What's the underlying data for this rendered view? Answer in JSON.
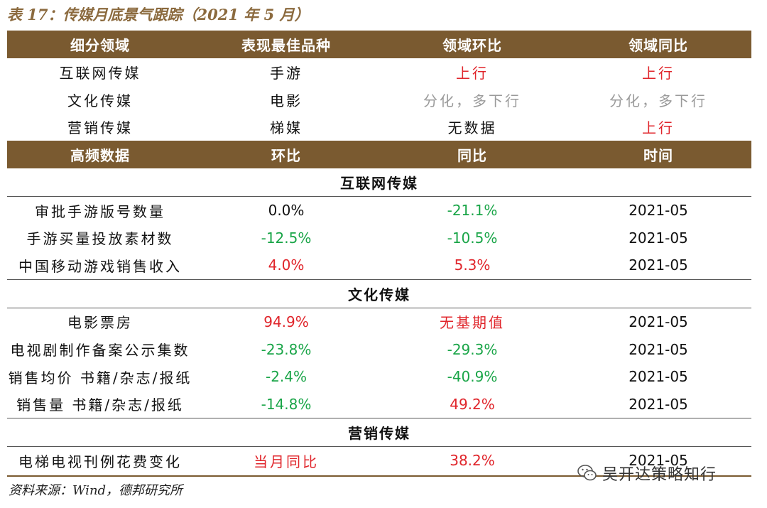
{
  "title": "表 17：传媒月底景气跟踪（2021 年 5 月）",
  "header1": [
    "细分领域",
    "表现最佳品种",
    "领域环比",
    "领域同比"
  ],
  "summary_rows": [
    {
      "field": "互联网传媒",
      "best": "手游",
      "mom": "上行",
      "yoy": "上行"
    },
    {
      "field": "文化传媒",
      "best": "电影",
      "mom": "分化，多下行",
      "yoy": "分化，多下行"
    },
    {
      "field": "营销传媒",
      "best": "梯媒",
      "mom": "无数据",
      "yoy": "上行"
    }
  ],
  "header2": [
    "高频数据",
    "环比",
    "同比",
    "时间"
  ],
  "sections": [
    {
      "name": "互联网传媒",
      "rows": [
        {
          "item": "审批手游版号数量",
          "mom": "0.0%",
          "yoy": "-21.1%",
          "time": "2021-05"
        },
        {
          "item": "手游买量投放素材数",
          "mom": "-12.5%",
          "yoy": "-10.5%",
          "time": "2021-05"
        },
        {
          "item": "中国移动游戏销售收入",
          "mom": "4.0%",
          "yoy": "5.3%",
          "time": "2021-05"
        }
      ]
    },
    {
      "name": "文化传媒",
      "rows": [
        {
          "item": "电影票房",
          "mom": "94.9%",
          "yoy": "无基期值",
          "time": "2021-05"
        },
        {
          "item": "电视剧制作备案公示集数",
          "mom": "-23.8%",
          "yoy": "-29.3%",
          "time": "2021-05"
        },
        {
          "item": "销售均价 书籍/杂志/报纸",
          "mom": "-2.4%",
          "yoy": "-40.9%",
          "time": "2021-05"
        },
        {
          "item": "销售量 书籍/杂志/报纸",
          "mom": "-14.8%",
          "yoy": "49.2%",
          "time": "2021-05"
        }
      ]
    },
    {
      "name": "营销传媒",
      "rows": [
        {
          "item": "电梯电视刊例花费变化",
          "mom": "当月同比",
          "yoy": "38.2%",
          "time": "2021-05"
        }
      ]
    }
  ],
  "source": "资料来源：Wind，德邦研究所",
  "watermark": "吴开达策略知行",
  "colors": {
    "header_bg": "#7a5a30",
    "title": "#8b6a3e",
    "up": "#e0252b",
    "down": "#1aa548",
    "neutral": "#9a9a9a"
  }
}
